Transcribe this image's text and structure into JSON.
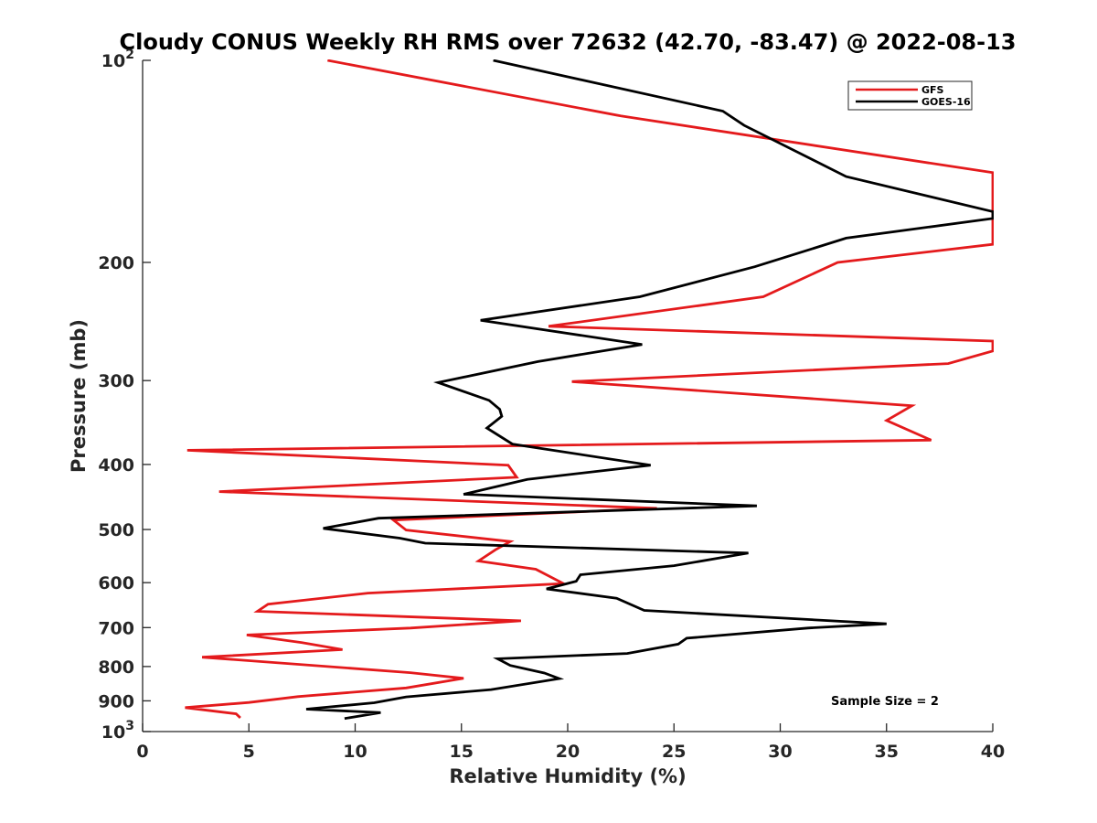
{
  "chart_data": {
    "type": "line",
    "title": "Cloudy CONUS Weekly RH RMS over 72632 (42.70, -83.47) @ 2022-08-13",
    "xlabel": "Relative Humidity (%)",
    "ylabel": "Pressure (mb)",
    "xlim": [
      0,
      40
    ],
    "ylim": [
      100,
      1000
    ],
    "y_scale": "log",
    "y_reversed": true,
    "grid": false,
    "legend_position": "top-right",
    "x_ticks": [
      "0",
      "5",
      "10",
      "15",
      "20",
      "25",
      "30",
      "35",
      "40"
    ],
    "x_tick_values": [
      0,
      5,
      10,
      15,
      20,
      25,
      30,
      35,
      40
    ],
    "y_ticks": [
      {
        "value": 100,
        "base": "10",
        "exp": "2"
      },
      {
        "value": 200,
        "label": "200"
      },
      {
        "value": 300,
        "label": "300"
      },
      {
        "value": 400,
        "label": "400"
      },
      {
        "value": 500,
        "label": "500"
      },
      {
        "value": 600,
        "label": "600"
      },
      {
        "value": 700,
        "label": "700"
      },
      {
        "value": 800,
        "label": "800"
      },
      {
        "value": 900,
        "label": "900"
      },
      {
        "value": 1000,
        "base": "10",
        "exp": "3"
      }
    ],
    "annotation": "Sample Size = 2",
    "series": [
      {
        "name": "GFS",
        "color": "#e41a1c",
        "points": [
          [
            8.7,
            100
          ],
          [
            22.5,
            121
          ],
          [
            40,
            147
          ],
          [
            40,
            188
          ],
          [
            32.7,
            200
          ],
          [
            29.2,
            225
          ],
          [
            19.1,
            249
          ],
          [
            40,
            262
          ],
          [
            40,
            271
          ],
          [
            37.9,
            283
          ],
          [
            20.2,
            301
          ],
          [
            36.2,
            327
          ],
          [
            35.0,
            344
          ],
          [
            37.1,
            368
          ],
          [
            2.1,
            381
          ],
          [
            17.2,
            401
          ],
          [
            17.6,
            418
          ],
          [
            3.6,
            439
          ],
          [
            24.2,
            465
          ],
          [
            11.8,
            484
          ],
          [
            12.4,
            501
          ],
          [
            17.3,
            521
          ],
          [
            16.6,
            536
          ],
          [
            15.8,
            557
          ],
          [
            18.5,
            573
          ],
          [
            19.8,
            602
          ],
          [
            10.6,
            622
          ],
          [
            5.9,
            646
          ],
          [
            5.4,
            662
          ],
          [
            17.8,
            684
          ],
          [
            12.6,
            701
          ],
          [
            4.9,
            718
          ],
          [
            7.5,
            737
          ],
          [
            9.4,
            755
          ],
          [
            2.8,
            775
          ],
          [
            12.6,
            817
          ],
          [
            15.1,
            833
          ],
          [
            12.4,
            861
          ],
          [
            7.3,
            887
          ],
          [
            5.0,
            905
          ],
          [
            2.0,
            921
          ],
          [
            4.4,
            941
          ],
          [
            4.6,
            954
          ]
        ]
      },
      {
        "name": "GOES-16",
        "color": "#000000",
        "points": [
          [
            16.5,
            100
          ],
          [
            27.3,
            119
          ],
          [
            28.3,
            125
          ],
          [
            33.1,
            149
          ],
          [
            40,
            168
          ],
          [
            40,
            172
          ],
          [
            33.1,
            184
          ],
          [
            28.8,
            203
          ],
          [
            23.4,
            225
          ],
          [
            15.9,
            244
          ],
          [
            23.5,
            265
          ],
          [
            18.6,
            281
          ],
          [
            13.9,
            302
          ],
          [
            16.3,
            321
          ],
          [
            16.8,
            331
          ],
          [
            16.9,
            339
          ],
          [
            16.2,
            353
          ],
          [
            17.4,
            373
          ],
          [
            23.9,
            401
          ],
          [
            18.1,
            421
          ],
          [
            15.1,
            443
          ],
          [
            28.9,
            461
          ],
          [
            11.1,
            481
          ],
          [
            8.5,
            498
          ],
          [
            12.1,
            515
          ],
          [
            13.3,
            524
          ],
          [
            28.5,
            542
          ],
          [
            25.0,
            566
          ],
          [
            20.6,
            584
          ],
          [
            20.4,
            597
          ],
          [
            19.0,
            613
          ],
          [
            22.3,
            633
          ],
          [
            23.6,
            660
          ],
          [
            35.0,
            691
          ],
          [
            31.3,
            701
          ],
          [
            25.6,
            726
          ],
          [
            25.2,
            741
          ],
          [
            22.8,
            765
          ],
          [
            16.7,
            779
          ],
          [
            17.3,
            797
          ],
          [
            18.9,
            818
          ],
          [
            19.6,
            834
          ],
          [
            16.4,
            866
          ],
          [
            12.4,
            888
          ],
          [
            10.9,
            906
          ],
          [
            7.7,
            926
          ],
          [
            11.2,
            937
          ],
          [
            9.5,
            956
          ]
        ]
      }
    ]
  }
}
